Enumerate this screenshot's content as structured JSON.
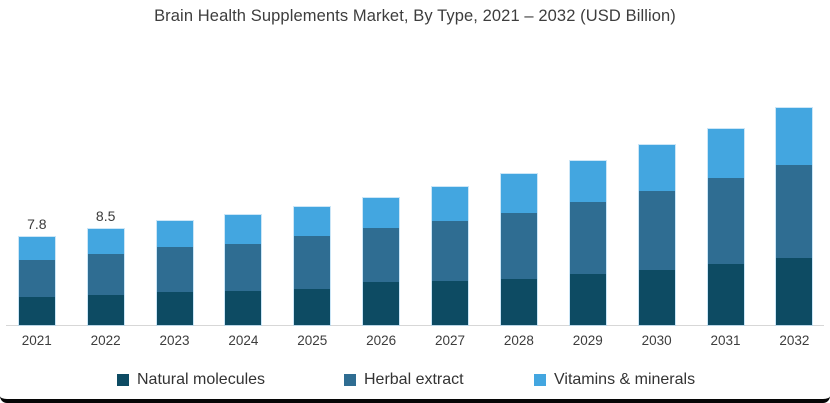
{
  "chart": {
    "title": "Brain Health Supplements Market, By Type, 2021 – 2032 (USD Billion)"
  },
  "chart_data": {
    "type": "bar",
    "stacked": true,
    "title": "Brain Health Supplements Market, By Type, 2021 – 2032 (USD Billion)",
    "xlabel": "",
    "ylabel": "USD Billion",
    "gridlines": false,
    "legend_position": "bottom",
    "axis_color": "#d7d7d7",
    "categories": [
      "2021",
      "2022",
      "2023",
      "2024",
      "2025",
      "2026",
      "2027",
      "2028",
      "2029",
      "2030",
      "2031",
      "2032"
    ],
    "series": [
      {
        "name": "Natural molecules",
        "color": "#0d4b63",
        "values": [
          2.5,
          2.7,
          2.9,
          3.0,
          3.2,
          3.8,
          3.9,
          4.1,
          4.5,
          4.9,
          5.4,
          5.9
        ]
      },
      {
        "name": "Herbal extract",
        "color": "#2f6d92",
        "values": [
          3.3,
          3.6,
          4.0,
          4.2,
          4.7,
          4.8,
          5.3,
          5.8,
          6.4,
          7.0,
          7.6,
          8.3
        ]
      },
      {
        "name": "Vitamins & minerals",
        "color": "#43a6e0",
        "values": [
          2.0,
          2.2,
          2.3,
          2.6,
          2.6,
          2.7,
          3.0,
          3.5,
          3.6,
          4.1,
          4.4,
          5.0
        ]
      }
    ],
    "totals": [
      7.8,
      8.5,
      9.2,
      9.8,
      10.5,
      11.3,
      12.2,
      13.4,
      14.5,
      16.0,
      17.4,
      19.2
    ],
    "total_labels": {
      "2021": "7.8",
      "2022": "8.5"
    }
  },
  "legend": {
    "items": [
      {
        "label": "Natural molecules",
        "color": "#0d4b63"
      },
      {
        "label": "Herbal extract",
        "color": "#2f6d92"
      },
      {
        "label": "Vitamins & minerals",
        "color": "#43a6e0"
      }
    ]
  }
}
